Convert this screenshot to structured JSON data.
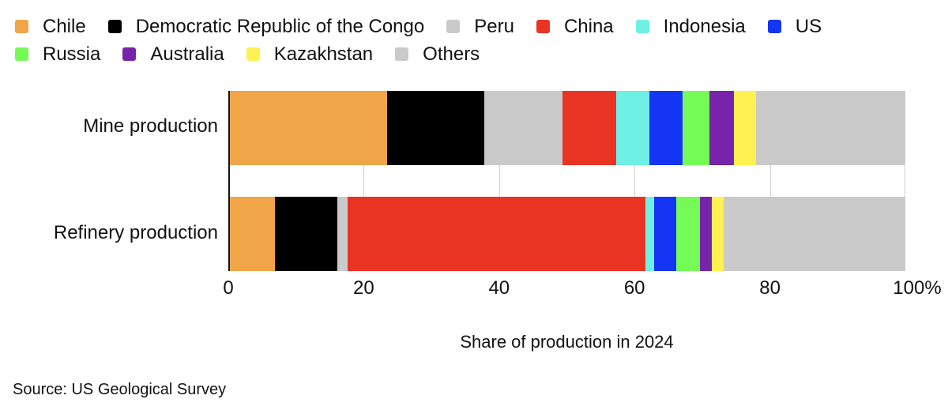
{
  "legend": {
    "rows": [
      [
        {
          "name": "Chile",
          "color": "#f0a548"
        },
        {
          "name": "Democratic Republic of the Congo",
          "color": "#000000"
        },
        {
          "name": "Peru",
          "color": "#cacaca"
        },
        {
          "name": "China",
          "color": "#e93424"
        },
        {
          "name": "Indonesia",
          "color": "#6ff0e4"
        },
        {
          "name": "US",
          "color": "#1535f5"
        }
      ],
      [
        {
          "name": "Russia",
          "color": "#75fb55"
        },
        {
          "name": "Australia",
          "color": "#7723aa"
        },
        {
          "name": "Kazakhstan",
          "color": "#fff150"
        },
        {
          "name": "Others",
          "color": "#cacaca"
        }
      ]
    ]
  },
  "axis": {
    "ticks": [
      "0",
      "20",
      "40",
      "60",
      "80",
      "100%"
    ],
    "xlabel": "Share of production in 2024"
  },
  "source": "Source: US Geological Survey",
  "chart_data": {
    "type": "bar",
    "orientation": "horizontal",
    "stacked": true,
    "title": "",
    "xlabel": "Share of production in 2024",
    "ylabel": "",
    "xlim": [
      0,
      100
    ],
    "x_tick_labels": [
      "0",
      "20",
      "40",
      "60",
      "80",
      "100%"
    ],
    "grid": true,
    "legend_position": "top",
    "categories": [
      "Mine production",
      "Refinery production"
    ],
    "series": [
      {
        "name": "Chile",
        "color": "#f0a548",
        "values": [
          23.4,
          6.9
        ]
      },
      {
        "name": "Democratic Republic of the Congo",
        "color": "#000000",
        "values": [
          14.4,
          9.2
        ]
      },
      {
        "name": "Peru",
        "color": "#cacaca",
        "values": [
          11.6,
          1.5
        ]
      },
      {
        "name": "China",
        "color": "#e93424",
        "values": [
          7.9,
          44.0
        ]
      },
      {
        "name": "Indonesia",
        "color": "#6ff0e4",
        "values": [
          4.9,
          1.3
        ]
      },
      {
        "name": "US",
        "color": "#1535f5",
        "values": [
          4.9,
          3.3
        ]
      },
      {
        "name": "Russia",
        "color": "#75fb55",
        "values": [
          4.0,
          3.5
        ]
      },
      {
        "name": "Australia",
        "color": "#7723aa",
        "values": [
          3.6,
          1.7
        ]
      },
      {
        "name": "Kazakhstan",
        "color": "#fff150",
        "values": [
          3.3,
          1.8
        ]
      },
      {
        "name": "Others",
        "color": "#cacaca",
        "values": [
          22.0,
          26.8
        ]
      }
    ],
    "source": "Source: US Geological Survey"
  }
}
